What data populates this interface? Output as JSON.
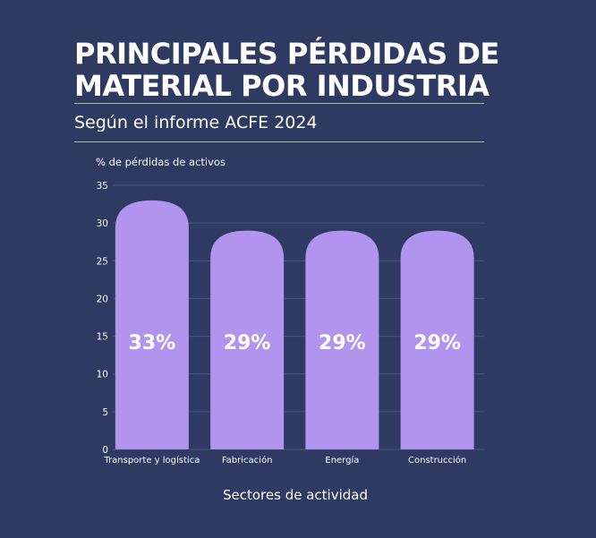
{
  "title": "PRINCIPALES PÉRDIDAS DE MATERIAL POR INDUSTRIA",
  "subtitle": "Según el informe ACFE 2024",
  "colors": {
    "background": "#2e3a62",
    "bar": "#b094ee",
    "rule": "#a8bf8e",
    "grid": "#4a5680",
    "text": "#ffffff"
  },
  "chart_data": {
    "type": "bar",
    "ylabel": "% de pérdidas de activos",
    "xlabel": "Sectores de actividad",
    "ylim": [
      0,
      35
    ],
    "yticks": [
      0,
      5,
      10,
      15,
      20,
      25,
      30,
      35
    ],
    "grid": true,
    "categories": [
      "Transporte y logística",
      "Fabricación",
      "Energía",
      "Construcción"
    ],
    "values": [
      33,
      29,
      29,
      29
    ],
    "data_labels": [
      "33%",
      "29%",
      "29%",
      "29%"
    ]
  }
}
